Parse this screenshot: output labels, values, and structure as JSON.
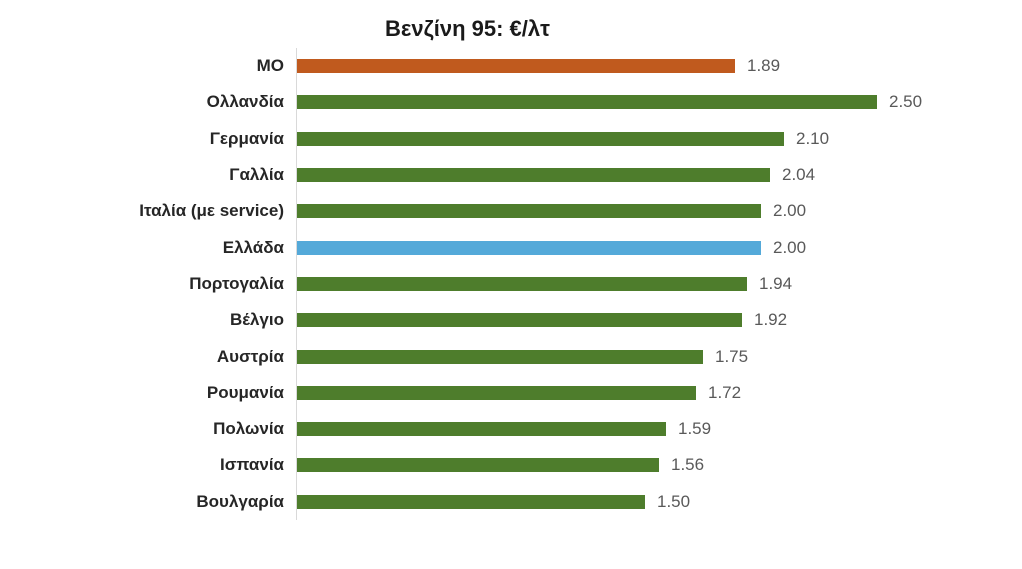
{
  "chart_data": {
    "type": "bar",
    "orientation": "horizontal",
    "title": "Βενζίνη 95: €/λτ",
    "xlabel": "",
    "ylabel": "",
    "xlim": [
      0,
      2.72
    ],
    "grid": false,
    "legend": "none",
    "value_labels_shown": true,
    "categories": [
      "ΜΟ",
      "Ολλανδία",
      "Γερμανία",
      "Γαλλία",
      "Ιταλία (με service)",
      "Ελλάδα",
      "Πορτογαλία",
      "Βέλγιο",
      "Αυστρία",
      "Ρουμανία",
      "Πολωνία",
      "Ισπανία",
      "Βουλγαρία"
    ],
    "values": [
      1.89,
      2.5,
      2.1,
      2.04,
      2.0,
      2.0,
      1.94,
      1.92,
      1.75,
      1.72,
      1.59,
      1.56,
      1.5
    ],
    "value_labels": [
      "1.89",
      "2.50",
      "2.10",
      "2.04",
      "2.00",
      "2.00",
      "1.94",
      "1.92",
      "1.75",
      "1.72",
      "1.59",
      "1.56",
      "1.50"
    ],
    "bar_roles": [
      "average",
      "default",
      "default",
      "default",
      "default",
      "highlight",
      "default",
      "default",
      "default",
      "default",
      "default",
      "default",
      "default"
    ],
    "colors": {
      "average_bar": "#C05A1E",
      "default_bar": "#4E7D2C",
      "highlight_bar": "#54A9D9",
      "category_label": "#262626",
      "value_label": "#595959",
      "axis_line": "#D9D9D9",
      "title": "#1A1A1A"
    }
  }
}
